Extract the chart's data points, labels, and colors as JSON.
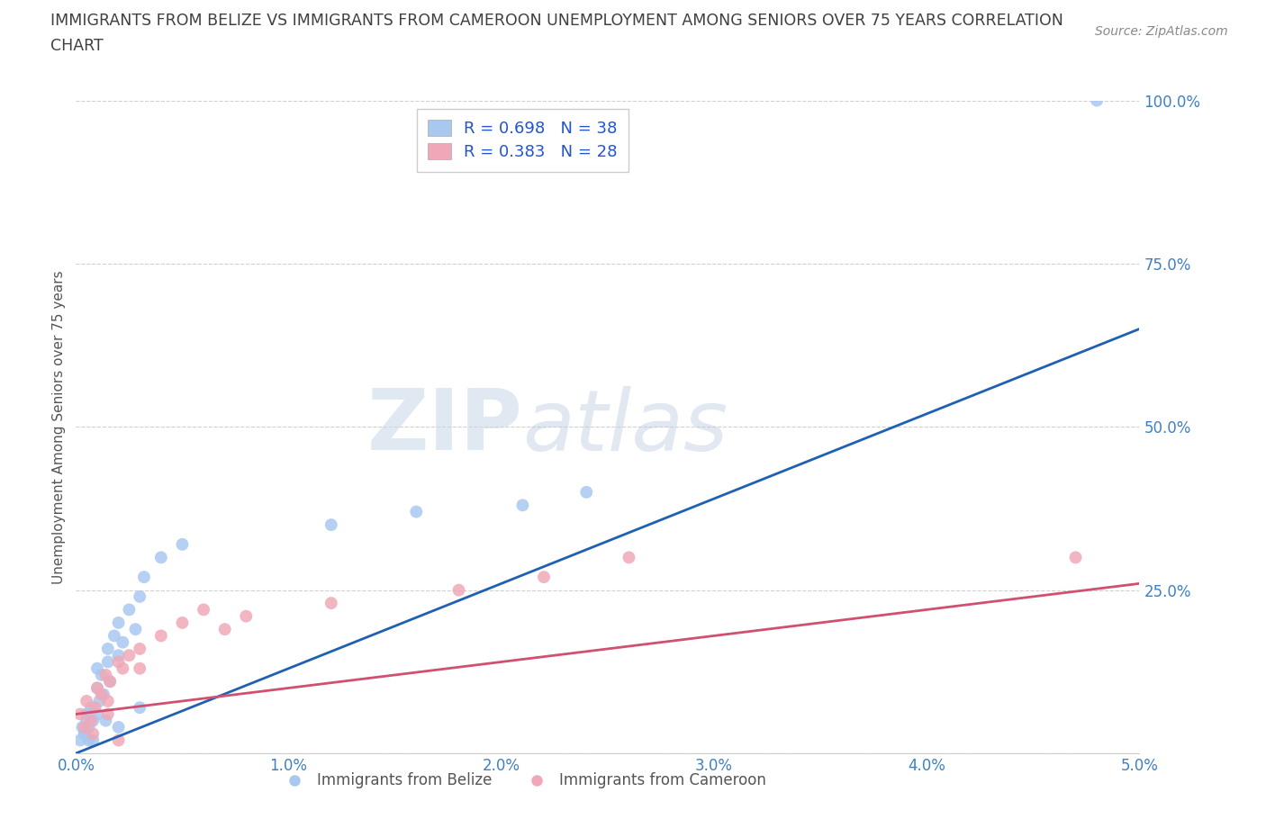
{
  "title_line1": "IMMIGRANTS FROM BELIZE VS IMMIGRANTS FROM CAMEROON UNEMPLOYMENT AMONG SENIORS OVER 75 YEARS CORRELATION",
  "title_line2": "CHART",
  "source": "Source: ZipAtlas.com",
  "ylabel": "Unemployment Among Seniors over 75 years",
  "belize_color": "#a8c8f0",
  "cameroon_color": "#f0a8b8",
  "belize_line_color": "#2060b0",
  "cameroon_line_color": "#d05070",
  "belize_label": "Immigrants from Belize",
  "cameroon_label": "Immigrants from Cameroon",
  "R_belize": 0.698,
  "N_belize": 38,
  "R_cameroon": 0.383,
  "N_cameroon": 28,
  "xlim": [
    0,
    0.05
  ],
  "ylim": [
    0,
    1.0
  ],
  "xticks": [
    0,
    0.01,
    0.02,
    0.03,
    0.04,
    0.05
  ],
  "xtick_labels": [
    "0.0%",
    "1.0%",
    "2.0%",
    "3.0%",
    "4.0%",
    "5.0%"
  ],
  "yticks": [
    0.0,
    0.25,
    0.5,
    0.75,
    1.0
  ],
  "ytick_labels": [
    "",
    "25.0%",
    "50.0%",
    "75.0%",
    "100.0%"
  ],
  "belize_x": [
    0.0002,
    0.0003,
    0.0004,
    0.0005,
    0.0005,
    0.0006,
    0.0007,
    0.0008,
    0.001,
    0.001,
    0.0011,
    0.0012,
    0.0013,
    0.0015,
    0.0015,
    0.0016,
    0.0018,
    0.002,
    0.002,
    0.0022,
    0.0025,
    0.0028,
    0.003,
    0.0032,
    0.004,
    0.005,
    0.012,
    0.016,
    0.021,
    0.024,
    0.0004,
    0.0006,
    0.001,
    0.0014,
    0.002,
    0.003,
    0.0008,
    0.048
  ],
  "belize_y": [
    0.02,
    0.04,
    0.03,
    0.06,
    0.05,
    0.04,
    0.07,
    0.05,
    0.1,
    0.13,
    0.08,
    0.12,
    0.09,
    0.14,
    0.16,
    0.11,
    0.18,
    0.15,
    0.2,
    0.17,
    0.22,
    0.19,
    0.24,
    0.27,
    0.3,
    0.32,
    0.35,
    0.37,
    0.38,
    0.4,
    0.03,
    0.02,
    0.06,
    0.05,
    0.04,
    0.07,
    0.02,
    1.0
  ],
  "cameroon_x": [
    0.0002,
    0.0004,
    0.0005,
    0.0007,
    0.0009,
    0.001,
    0.0012,
    0.0014,
    0.0015,
    0.0016,
    0.002,
    0.0022,
    0.0025,
    0.003,
    0.003,
    0.004,
    0.005,
    0.006,
    0.007,
    0.008,
    0.012,
    0.018,
    0.022,
    0.026,
    0.0008,
    0.0015,
    0.002,
    0.047
  ],
  "cameroon_y": [
    0.06,
    0.04,
    0.08,
    0.05,
    0.07,
    0.1,
    0.09,
    0.12,
    0.08,
    0.11,
    0.14,
    0.13,
    0.15,
    0.16,
    0.13,
    0.18,
    0.2,
    0.22,
    0.19,
    0.21,
    0.23,
    0.25,
    0.27,
    0.3,
    0.03,
    0.06,
    0.02,
    0.3
  ],
  "belize_trend_x0": 0.0,
  "belize_trend_y0": 0.0,
  "belize_trend_x1": 0.05,
  "belize_trend_y1": 0.65,
  "cameroon_trend_x0": 0.0,
  "cameroon_trend_y0": 0.06,
  "cameroon_trend_x1": 0.05,
  "cameroon_trend_y1": 0.26,
  "watermark_zip": "ZIP",
  "watermark_atlas": "atlas",
  "background_color": "#ffffff",
  "grid_color": "#d0d0d0",
  "title_color": "#404040",
  "tick_label_color": "#4080c0",
  "legend_R_color": "#2255cc",
  "source_color": "#888888",
  "ylabel_color": "#555555"
}
